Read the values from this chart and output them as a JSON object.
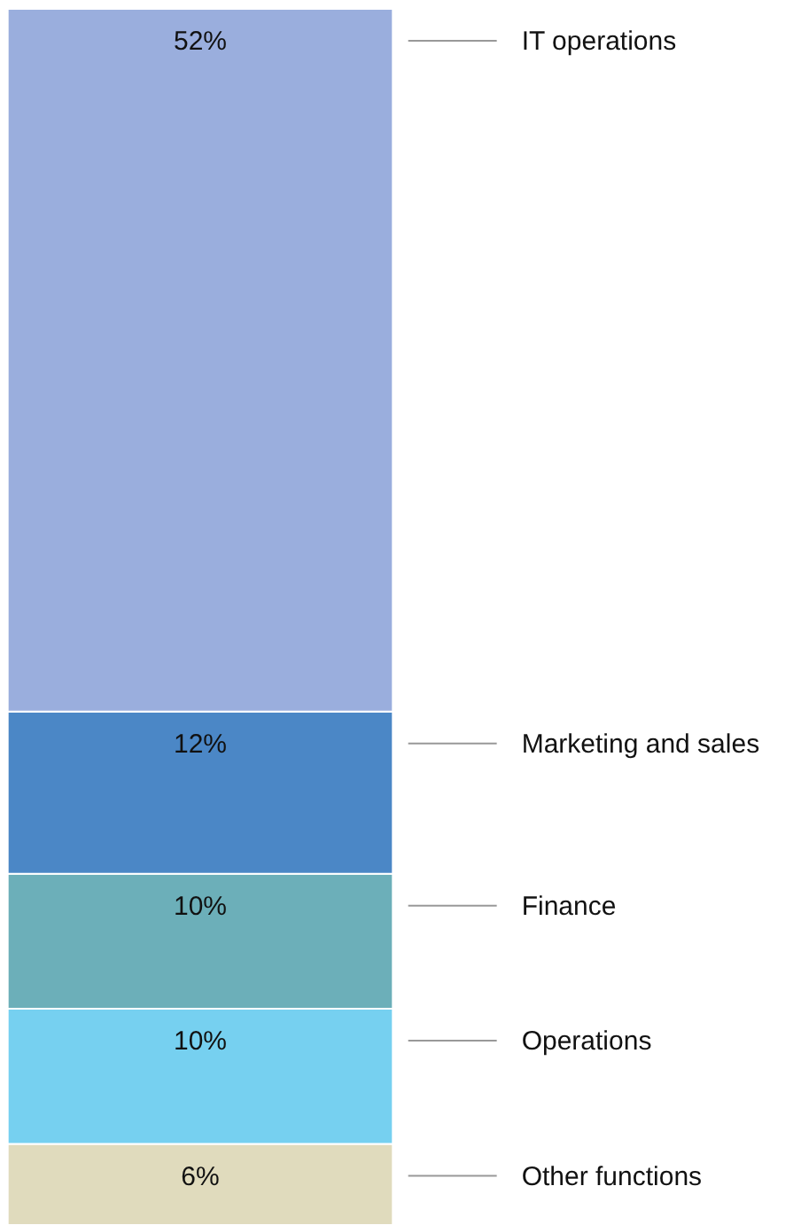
{
  "chart_data": {
    "type": "bar",
    "stacked": true,
    "categories": [
      null
    ],
    "series": [
      {
        "name": "Other functions",
        "color": "#e0dbbd",
        "values": [
          6
        ],
        "value_labels": [
          "6%"
        ]
      },
      {
        "name": "Operations",
        "color": "#76d0f0",
        "values": [
          10
        ],
        "value_labels": [
          "10%"
        ]
      },
      {
        "name": "Finance",
        "color": "#6cafb9",
        "values": [
          10
        ],
        "value_labels": [
          "10%"
        ]
      },
      {
        "name": "Marketing and sales",
        "color": "#4b87c6",
        "values": [
          12
        ],
        "value_labels": [
          "12%"
        ]
      },
      {
        "name": "IT operations",
        "color": "#9aaedd",
        "values": [
          52
        ],
        "value_labels": [
          "52%"
        ]
      }
    ]
  }
}
